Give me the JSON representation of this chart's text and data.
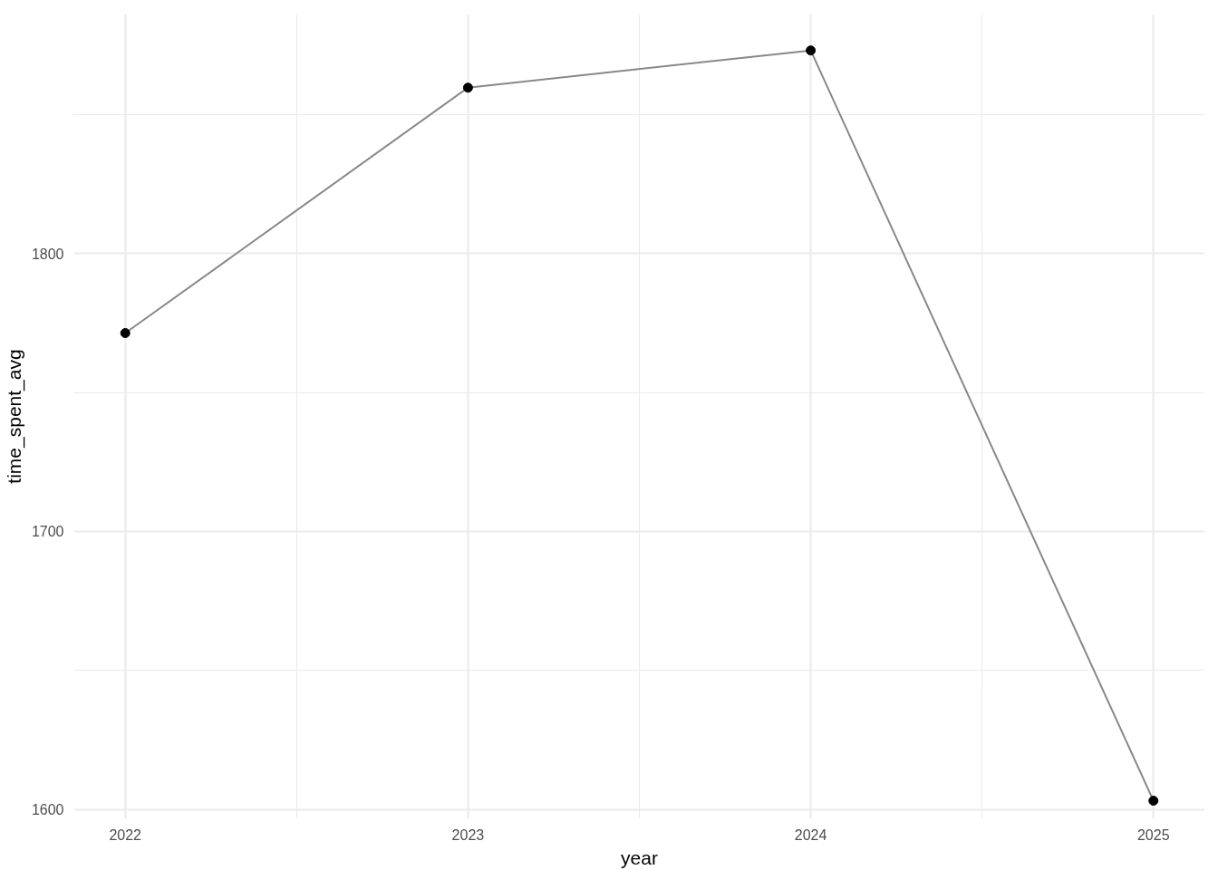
{
  "chart_data": {
    "type": "line",
    "xlabel": "year",
    "ylabel": "time_spent_avg",
    "x": [
      2022,
      2023,
      2024,
      2025
    ],
    "series": [
      {
        "color": "#888888",
        "values": [
          1771.4,
          1859.7,
          1873.1,
          1603.1
        ]
      }
    ],
    "marker": "circle",
    "line_style": "solid",
    "grid": true,
    "xlim": [
      2021.85,
      2025.15
    ],
    "ylim": [
      1596.6,
      1886.2
    ],
    "xticks": [
      2022,
      {
        "value": 2022.5,
        "label": null
      },
      2023,
      {
        "value": 2023.5,
        "label": null
      },
      2024,
      {
        "value": 2024.5,
        "label": null
      },
      2025
    ],
    "yticks": [
      1600,
      {
        "value": 1650,
        "label": null
      },
      1700,
      {
        "value": 1750,
        "label": null
      },
      1800,
      {
        "value": 1850,
        "label": null
      }
    ]
  }
}
